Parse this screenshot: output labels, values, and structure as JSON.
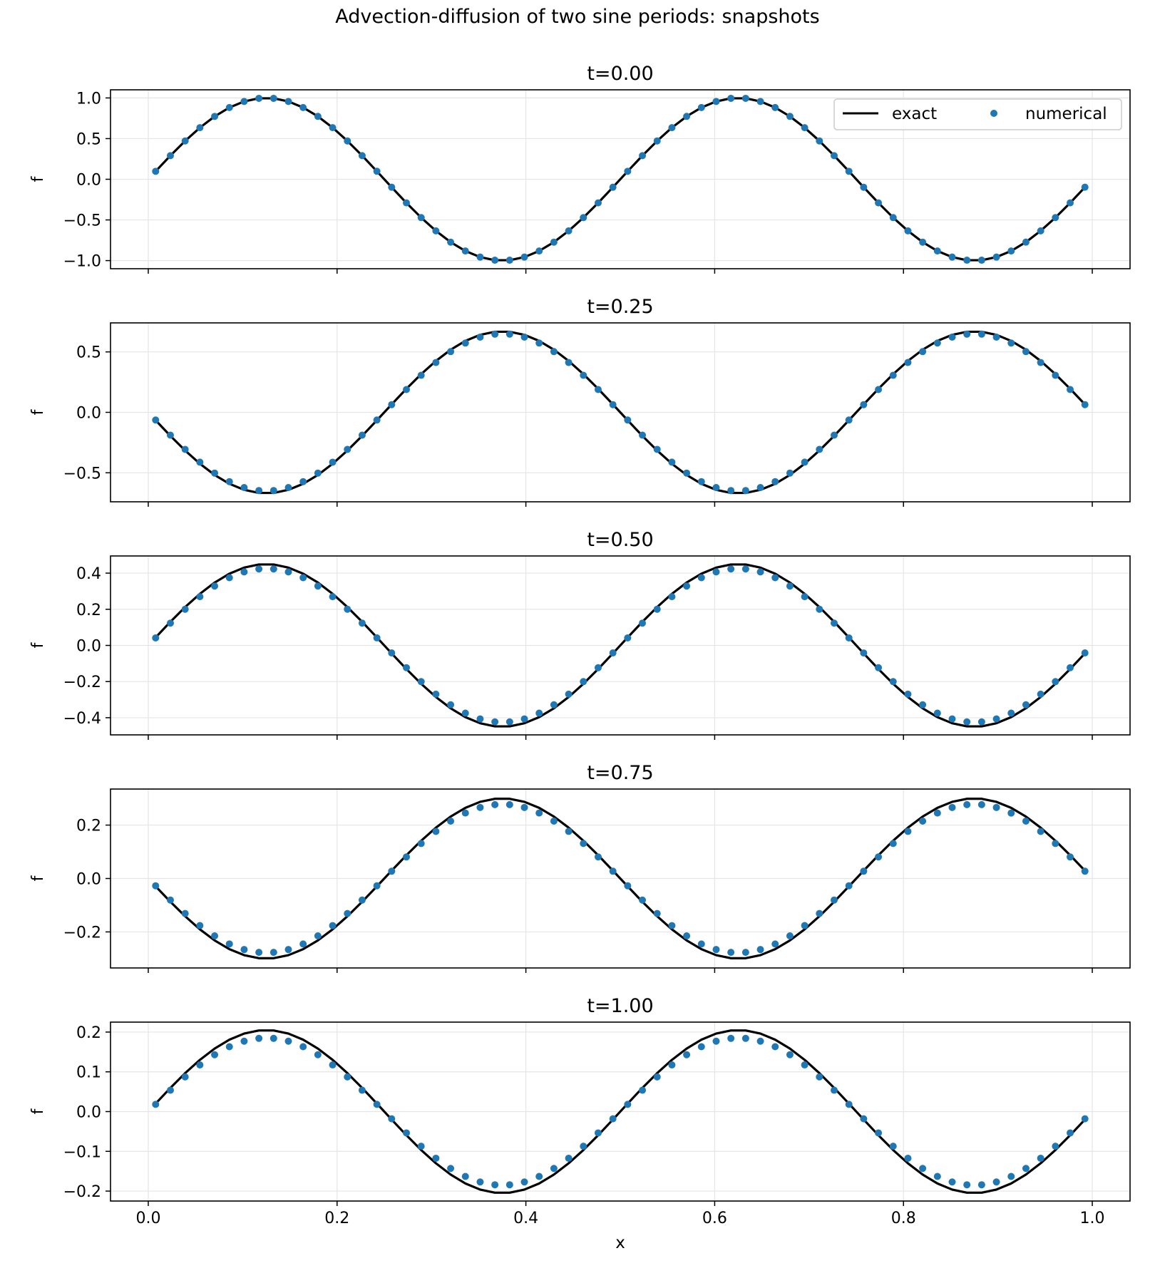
{
  "figure": {
    "title": "Advection-diffusion of two sine periods: snapshots"
  },
  "legend": {
    "exact_label": "exact",
    "numerical_label": "numerical",
    "placement": "top-right of first panel"
  },
  "colors": {
    "exact": "#000000",
    "numerical": "#1f77b4",
    "grid": "#e5e5e5"
  },
  "chart_data": [
    {
      "type": "line",
      "title": "t=0.00",
      "xlabel": "",
      "ylabel": "f",
      "xlim": [
        -0.04,
        1.04
      ],
      "ylim": [
        -1.1,
        1.1
      ],
      "xticks": [
        0.0,
        0.2,
        0.4,
        0.6,
        0.8,
        1.0
      ],
      "xtick_labels": [
        "",
        "",
        "",
        "",
        "",
        ""
      ],
      "yticks": [
        -1.0,
        -0.5,
        0.0,
        0.5,
        1.0
      ],
      "ytick_labels": [
        "−1.0",
        "−0.5",
        "0.0",
        "0.5",
        "1.0"
      ],
      "grid": true,
      "amplitude_exact": 1.0,
      "amplitude_numerical": 1.0,
      "phase_shift": 0.0,
      "series": [
        {
          "name": "exact",
          "style": "line",
          "x_start": 0.0078,
          "x_end": 0.9922,
          "points": 64
        },
        {
          "name": "numerical",
          "style": "markers",
          "x_start": 0.0078,
          "x_end": 0.9922,
          "points": 64
        }
      ]
    },
    {
      "type": "line",
      "title": "t=0.25",
      "xlabel": "",
      "ylabel": "f",
      "xlim": [
        -0.04,
        1.04
      ],
      "ylim": [
        -0.74,
        0.74
      ],
      "xticks": [
        0.0,
        0.2,
        0.4,
        0.6,
        0.8,
        1.0
      ],
      "xtick_labels": [
        "",
        "",
        "",
        "",
        "",
        ""
      ],
      "yticks": [
        -0.5,
        0.0,
        0.5
      ],
      "ytick_labels": [
        "−0.5",
        "0.0",
        "0.5"
      ],
      "grid": true,
      "amplitude_exact": 0.67,
      "amplitude_numerical": 0.65,
      "phase_shift": 0.25,
      "series": [
        {
          "name": "exact",
          "style": "line",
          "x_start": 0.0078,
          "x_end": 0.9922,
          "points": 64
        },
        {
          "name": "numerical",
          "style": "markers",
          "x_start": 0.0078,
          "x_end": 0.9922,
          "points": 64
        }
      ]
    },
    {
      "type": "line",
      "title": "t=0.50",
      "xlabel": "",
      "ylabel": "f",
      "xlim": [
        -0.04,
        1.04
      ],
      "ylim": [
        -0.495,
        0.495
      ],
      "xticks": [
        0.0,
        0.2,
        0.4,
        0.6,
        0.8,
        1.0
      ],
      "xtick_labels": [
        "",
        "",
        "",
        "",
        "",
        ""
      ],
      "yticks": [
        -0.4,
        -0.2,
        0.0,
        0.2,
        0.4
      ],
      "ytick_labels": [
        "−0.4",
        "−0.2",
        "0.0",
        "0.2",
        "0.4"
      ],
      "grid": true,
      "amplitude_exact": 0.45,
      "amplitude_numerical": 0.425,
      "phase_shift": 0.0,
      "series": [
        {
          "name": "exact",
          "style": "line",
          "x_start": 0.0078,
          "x_end": 0.9922,
          "points": 64
        },
        {
          "name": "numerical",
          "style": "markers",
          "x_start": 0.0078,
          "x_end": 0.9922,
          "points": 64
        }
      ]
    },
    {
      "type": "line",
      "title": "t=0.75",
      "xlabel": "",
      "ylabel": "f",
      "xlim": [
        -0.04,
        1.04
      ],
      "ylim": [
        -0.335,
        0.335
      ],
      "xticks": [
        0.0,
        0.2,
        0.4,
        0.6,
        0.8,
        1.0
      ],
      "xtick_labels": [
        "",
        "",
        "",
        "",
        "",
        ""
      ],
      "yticks": [
        -0.2,
        0.0,
        0.2
      ],
      "ytick_labels": [
        "−0.2",
        "0.0",
        "0.2"
      ],
      "grid": true,
      "amplitude_exact": 0.3,
      "amplitude_numerical": 0.278,
      "phase_shift": 0.25,
      "series": [
        {
          "name": "exact",
          "style": "line",
          "x_start": 0.0078,
          "x_end": 0.9922,
          "points": 64
        },
        {
          "name": "numerical",
          "style": "markers",
          "x_start": 0.0078,
          "x_end": 0.9922,
          "points": 64
        }
      ]
    },
    {
      "type": "line",
      "title": "t=1.00",
      "xlabel": "x",
      "ylabel": "f",
      "xlim": [
        -0.04,
        1.04
      ],
      "ylim": [
        -0.225,
        0.225
      ],
      "xticks": [
        0.0,
        0.2,
        0.4,
        0.6,
        0.8,
        1.0
      ],
      "xtick_labels": [
        "0.0",
        "0.2",
        "0.4",
        "0.6",
        "0.8",
        "1.0"
      ],
      "yticks": [
        -0.2,
        -0.1,
        0.0,
        0.1,
        0.2
      ],
      "ytick_labels": [
        "−0.2",
        "−0.1",
        "0.0",
        "0.1",
        "0.2"
      ],
      "grid": true,
      "amplitude_exact": 0.205,
      "amplitude_numerical": 0.185,
      "phase_shift": 0.0,
      "series": [
        {
          "name": "exact",
          "style": "line",
          "x_start": 0.0078,
          "x_end": 0.9922,
          "points": 64
        },
        {
          "name": "numerical",
          "style": "markers",
          "x_start": 0.0078,
          "x_end": 0.9922,
          "points": 64
        }
      ]
    }
  ]
}
